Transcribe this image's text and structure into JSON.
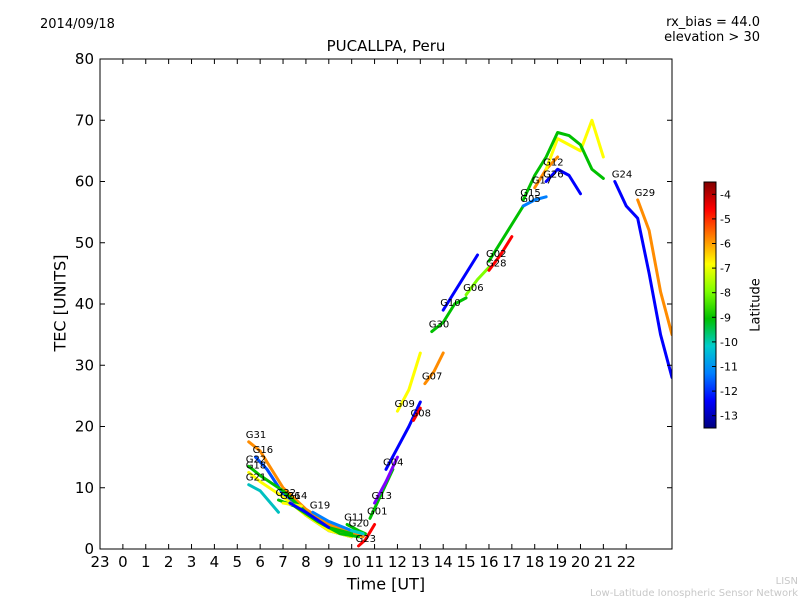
{
  "header": {
    "date": "2014/09/18",
    "rx_bias": "rx_bias = 44.0",
    "elevation": "elevation > 30"
  },
  "footer": {
    "credit_short": "LISN",
    "credit_long": "Low-Latitude Ionospheric Sensor Network"
  },
  "colorbar": {
    "label": "Latitude",
    "range": [
      -13.5,
      -3.5
    ],
    "ticks": [
      "-4",
      "-5",
      "-6",
      "-7",
      "-8",
      "-9",
      "-10",
      "-11",
      "-12",
      "-13"
    ],
    "colormap": [
      "#00007f",
      "#0000ff",
      "#007fff",
      "#00cccc",
      "#00c000",
      "#7fff00",
      "#ffff00",
      "#ff7f00",
      "#ff0000",
      "#7f0000"
    ]
  },
  "chart_data": {
    "type": "scatter",
    "title": "PUCALLPA, Peru",
    "xlabel": "Time [UT]",
    "ylabel": "TEC [UNITS]",
    "xlim": [
      -1,
      24
    ],
    "ylim": [
      0,
      80
    ],
    "yticks": [
      "0",
      "10",
      "20",
      "30",
      "40",
      "50",
      "60",
      "70",
      "80"
    ],
    "xticks": [
      "23",
      "0",
      "1",
      "2",
      "3",
      "4",
      "5",
      "6",
      "7",
      "8",
      "9",
      "10",
      "11",
      "12",
      "13",
      "14",
      "15",
      "16",
      "17",
      "18",
      "19",
      "20",
      "21",
      "22"
    ],
    "grid": false,
    "series": [
      {
        "name": "G31",
        "color": "#ff8c00",
        "points": [
          [
            5.5,
            17.5
          ],
          [
            6.0,
            16.0
          ],
          [
            6.5,
            13.0
          ],
          [
            7.0,
            10.0
          ],
          [
            8.0,
            6.5
          ],
          [
            9.0,
            4.0
          ],
          [
            10.0,
            2.5
          ],
          [
            10.5,
            2.0
          ]
        ]
      },
      {
        "name": "G16",
        "color": "#0050ff",
        "points": [
          [
            5.8,
            15.0
          ],
          [
            6.3,
            13.0
          ],
          [
            7.0,
            9.0
          ],
          [
            8.0,
            5.5
          ],
          [
            9.0,
            3.0
          ],
          [
            10.0,
            2.0
          ]
        ]
      },
      {
        "name": "G22",
        "color": "#00c000",
        "points": [
          [
            5.5,
            13.5
          ],
          [
            6.0,
            12.0
          ],
          [
            7.0,
            9.5
          ],
          [
            8.0,
            6.0
          ],
          [
            9.0,
            3.5
          ],
          [
            10.0,
            2.5
          ]
        ]
      },
      {
        "name": "G18",
        "color": "#ffff00",
        "points": [
          [
            5.5,
            12.5
          ],
          [
            6.0,
            11.0
          ],
          [
            7.0,
            8.5
          ],
          [
            8.0,
            5.5
          ],
          [
            9.0,
            3.0
          ],
          [
            10.0,
            2.0
          ]
        ]
      },
      {
        "name": "G21",
        "color": "#00c0c0",
        "points": [
          [
            5.5,
            10.5
          ],
          [
            6.0,
            9.5
          ],
          [
            6.8,
            6.0
          ]
        ]
      },
      {
        "name": "G32",
        "color": "#00c000",
        "points": [
          [
            6.8,
            8.0
          ],
          [
            7.5,
            7.0
          ],
          [
            8.5,
            4.5
          ],
          [
            9.5,
            2.5
          ],
          [
            10.3,
            2.0
          ]
        ]
      },
      {
        "name": "G26",
        "color": "#ffff00",
        "points": [
          [
            7.0,
            7.5
          ],
          [
            7.8,
            7.0
          ]
        ]
      },
      {
        "name": "G14",
        "color": "#0000ff",
        "points": [
          [
            7.3,
            7.5
          ],
          [
            8.0,
            6.0
          ],
          [
            9.0,
            3.5
          ]
        ]
      },
      {
        "name": "G19",
        "color": "#007fff",
        "points": [
          [
            8.3,
            6.0
          ],
          [
            9.0,
            4.5
          ],
          [
            10.0,
            3.0
          ],
          [
            10.5,
            2.5
          ]
        ]
      },
      {
        "name": "G11",
        "color": "#00c000",
        "points": [
          [
            9.8,
            4.0
          ],
          [
            10.3,
            3.0
          ],
          [
            10.6,
            2.5
          ]
        ]
      },
      {
        "name": "G20",
        "color": "#00cccc",
        "points": [
          [
            10.0,
            3.0
          ],
          [
            10.5,
            2.5
          ]
        ]
      },
      {
        "name": "G23",
        "color": "#ff0000",
        "points": [
          [
            10.3,
            0.5
          ],
          [
            10.6,
            1.5
          ],
          [
            11.0,
            4.0
          ]
        ]
      },
      {
        "name": "G01",
        "color": "#00c000",
        "points": [
          [
            10.8,
            5.0
          ],
          [
            11.3,
            9.0
          ],
          [
            11.8,
            13.0
          ]
        ]
      },
      {
        "name": "G13",
        "color": "#7f00ff",
        "points": [
          [
            11.0,
            7.5
          ],
          [
            11.5,
            11.0
          ],
          [
            12.0,
            15.0
          ]
        ]
      },
      {
        "name": "G04",
        "color": "#0000ff",
        "points": [
          [
            11.5,
            13.0
          ],
          [
            12.0,
            16.5
          ],
          [
            12.5,
            20.0
          ],
          [
            13.0,
            24.0
          ]
        ]
      },
      {
        "name": "G08",
        "color": "#ff0000",
        "points": [
          [
            12.7,
            21.0
          ],
          [
            13.0,
            23.0
          ]
        ]
      },
      {
        "name": "G09",
        "color": "#ffff00",
        "points": [
          [
            12.0,
            22.5
          ],
          [
            12.5,
            26.0
          ],
          [
            13.0,
            32.0
          ]
        ]
      },
      {
        "name": "G07",
        "color": "#ff8c00",
        "points": [
          [
            13.2,
            27.0
          ],
          [
            13.6,
            29.0
          ],
          [
            14.0,
            32.0
          ]
        ]
      },
      {
        "name": "G30",
        "color": "#00c000",
        "points": [
          [
            13.5,
            35.5
          ],
          [
            14.0,
            37.0
          ],
          [
            14.5,
            40.0
          ],
          [
            15.0,
            41.0
          ]
        ]
      },
      {
        "name": "G06",
        "color": "#7fff00",
        "points": [
          [
            15.0,
            41.5
          ],
          [
            15.5,
            44.0
          ],
          [
            16.0,
            46.0
          ]
        ]
      },
      {
        "name": "G10",
        "color": "#0000ff",
        "points": [
          [
            14.0,
            39.0
          ],
          [
            14.5,
            42.0
          ],
          [
            15.0,
            45.0
          ],
          [
            15.5,
            48.0
          ]
        ]
      },
      {
        "name": "G28",
        "color": "#ff0000",
        "points": [
          [
            16.0,
            45.5
          ],
          [
            16.5,
            48.0
          ],
          [
            17.0,
            51.0
          ]
        ]
      },
      {
        "name": "G02",
        "color": "#00c000",
        "points": [
          [
            16.0,
            47.0
          ],
          [
            16.5,
            50.0
          ],
          [
            17.0,
            53.0
          ],
          [
            17.5,
            56.0
          ]
        ]
      },
      {
        "name": "G05",
        "color": "#007fff",
        "points": [
          [
            17.5,
            56.0
          ],
          [
            18.0,
            57.0
          ],
          [
            18.5,
            57.5
          ]
        ]
      },
      {
        "name": "G17",
        "color": "#ff8c00",
        "points": [
          [
            18.0,
            59.0
          ],
          [
            18.5,
            62.0
          ],
          [
            19.0,
            64.0
          ]
        ]
      },
      {
        "name": "G12",
        "color": "#ffff00",
        "points": [
          [
            18.5,
            62.0
          ],
          [
            19.0,
            67.0
          ],
          [
            19.5,
            66.0
          ],
          [
            20.0,
            65.0
          ],
          [
            20.5,
            70.0
          ],
          [
            21.0,
            64.0
          ]
        ]
      },
      {
        "name": "G26",
        "color": "#0000ff",
        "points": [
          [
            18.5,
            60.0
          ],
          [
            19.0,
            62.0
          ],
          [
            19.5,
            61.0
          ],
          [
            20.0,
            58.0
          ]
        ]
      },
      {
        "name": "G15",
        "color": "#00c000",
        "points": [
          [
            17.5,
            57.0
          ],
          [
            18.0,
            61.0
          ],
          [
            18.5,
            64.0
          ],
          [
            19.0,
            68.0
          ],
          [
            19.5,
            67.5
          ],
          [
            20.0,
            66.0
          ],
          [
            20.5,
            62.0
          ],
          [
            21.0,
            60.5
          ]
        ]
      },
      {
        "name": "G24",
        "color": "#0000ff",
        "points": [
          [
            21.5,
            60.0
          ],
          [
            22.0,
            56.0
          ],
          [
            22.5,
            54.0
          ],
          [
            23.0,
            45.0
          ],
          [
            23.5,
            35.0
          ],
          [
            24.0,
            28.0
          ]
        ]
      },
      {
        "name": "G29",
        "color": "#ff8c00",
        "points": [
          [
            22.5,
            57.0
          ],
          [
            23.0,
            52.0
          ],
          [
            23.5,
            42.0
          ],
          [
            24.0,
            35.0
          ]
        ]
      }
    ]
  }
}
